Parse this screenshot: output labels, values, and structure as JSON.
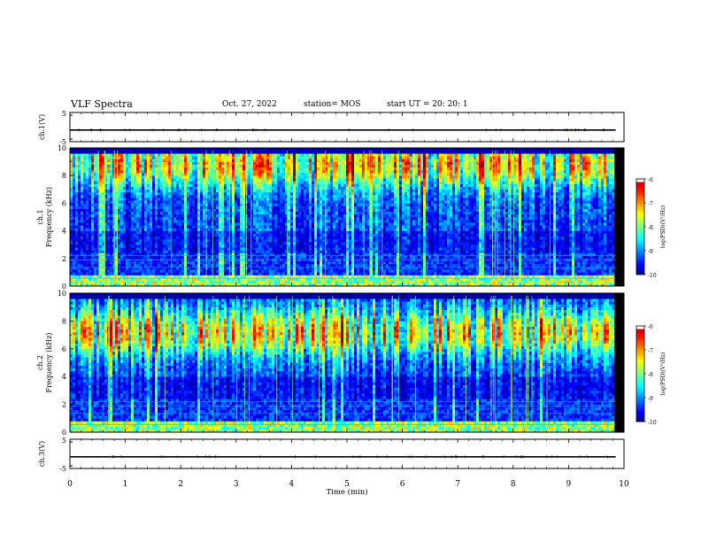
{
  "header": {
    "title": "VLF Spectra",
    "date": "Oct. 27, 2022",
    "station": "station= MOS",
    "start": "start  UT =   20: 20: 1"
  },
  "chart_data": [
    {
      "type": "line",
      "panel": "ch1-voltage",
      "ylabel": "ch.1(V)",
      "ylim": [
        -5,
        5
      ],
      "yticks": [
        "5",
        "-5"
      ],
      "x": [
        0,
        9.85
      ],
      "values": [
        -1,
        -1
      ]
    },
    {
      "type": "heatmap",
      "panel": "ch1-spectrogram",
      "ylabel": "ch.1\nFrequency (kHz)",
      "ylim": [
        0,
        10
      ],
      "yticks": [
        "0",
        "2",
        "4",
        "6",
        "8",
        "10"
      ],
      "xlim": [
        0,
        9.85
      ],
      "intensity_band_center_khz": 8.8,
      "quiet_band_khz": [
        0.8,
        2.3
      ],
      "colorbar": {
        "label": "log(PSD)(V²/Hz)",
        "range": [
          -10,
          -6
        ],
        "ticks": [
          "-6",
          "-7",
          "-8",
          "-9",
          "-10"
        ]
      }
    },
    {
      "type": "heatmap",
      "panel": "ch2-spectrogram",
      "ylabel": "ch.2\nFrequency (kHz)",
      "ylim": [
        0,
        10
      ],
      "yticks": [
        "0",
        "2",
        "4",
        "6",
        "8",
        "10"
      ],
      "xlim": [
        0,
        9.85
      ],
      "intensity_band_center_khz": 7.2,
      "quiet_band_khz": [
        0.8,
        2.3
      ],
      "colorbar": {
        "label": "log(PSD)(V²/Hz)",
        "range": [
          -10,
          -6
        ],
        "ticks": [
          "-6",
          "-7",
          "-8",
          "-9",
          "-10"
        ]
      }
    },
    {
      "type": "line",
      "panel": "ch3-voltage",
      "ylabel": "ch.3(V)",
      "ylim": [
        -5,
        5
      ],
      "yticks": [
        "5",
        "-5"
      ],
      "x": [
        0,
        9.85
      ],
      "values": [
        -1,
        -1
      ]
    }
  ],
  "xaxis": {
    "label": "Time  (min)",
    "range": [
      0,
      10
    ],
    "ticks": [
      "0",
      "1",
      "2",
      "3",
      "4",
      "5",
      "6",
      "7",
      "8",
      "9",
      "10"
    ]
  },
  "colors": {
    "text": "#000000",
    "background": "#ffffff"
  }
}
